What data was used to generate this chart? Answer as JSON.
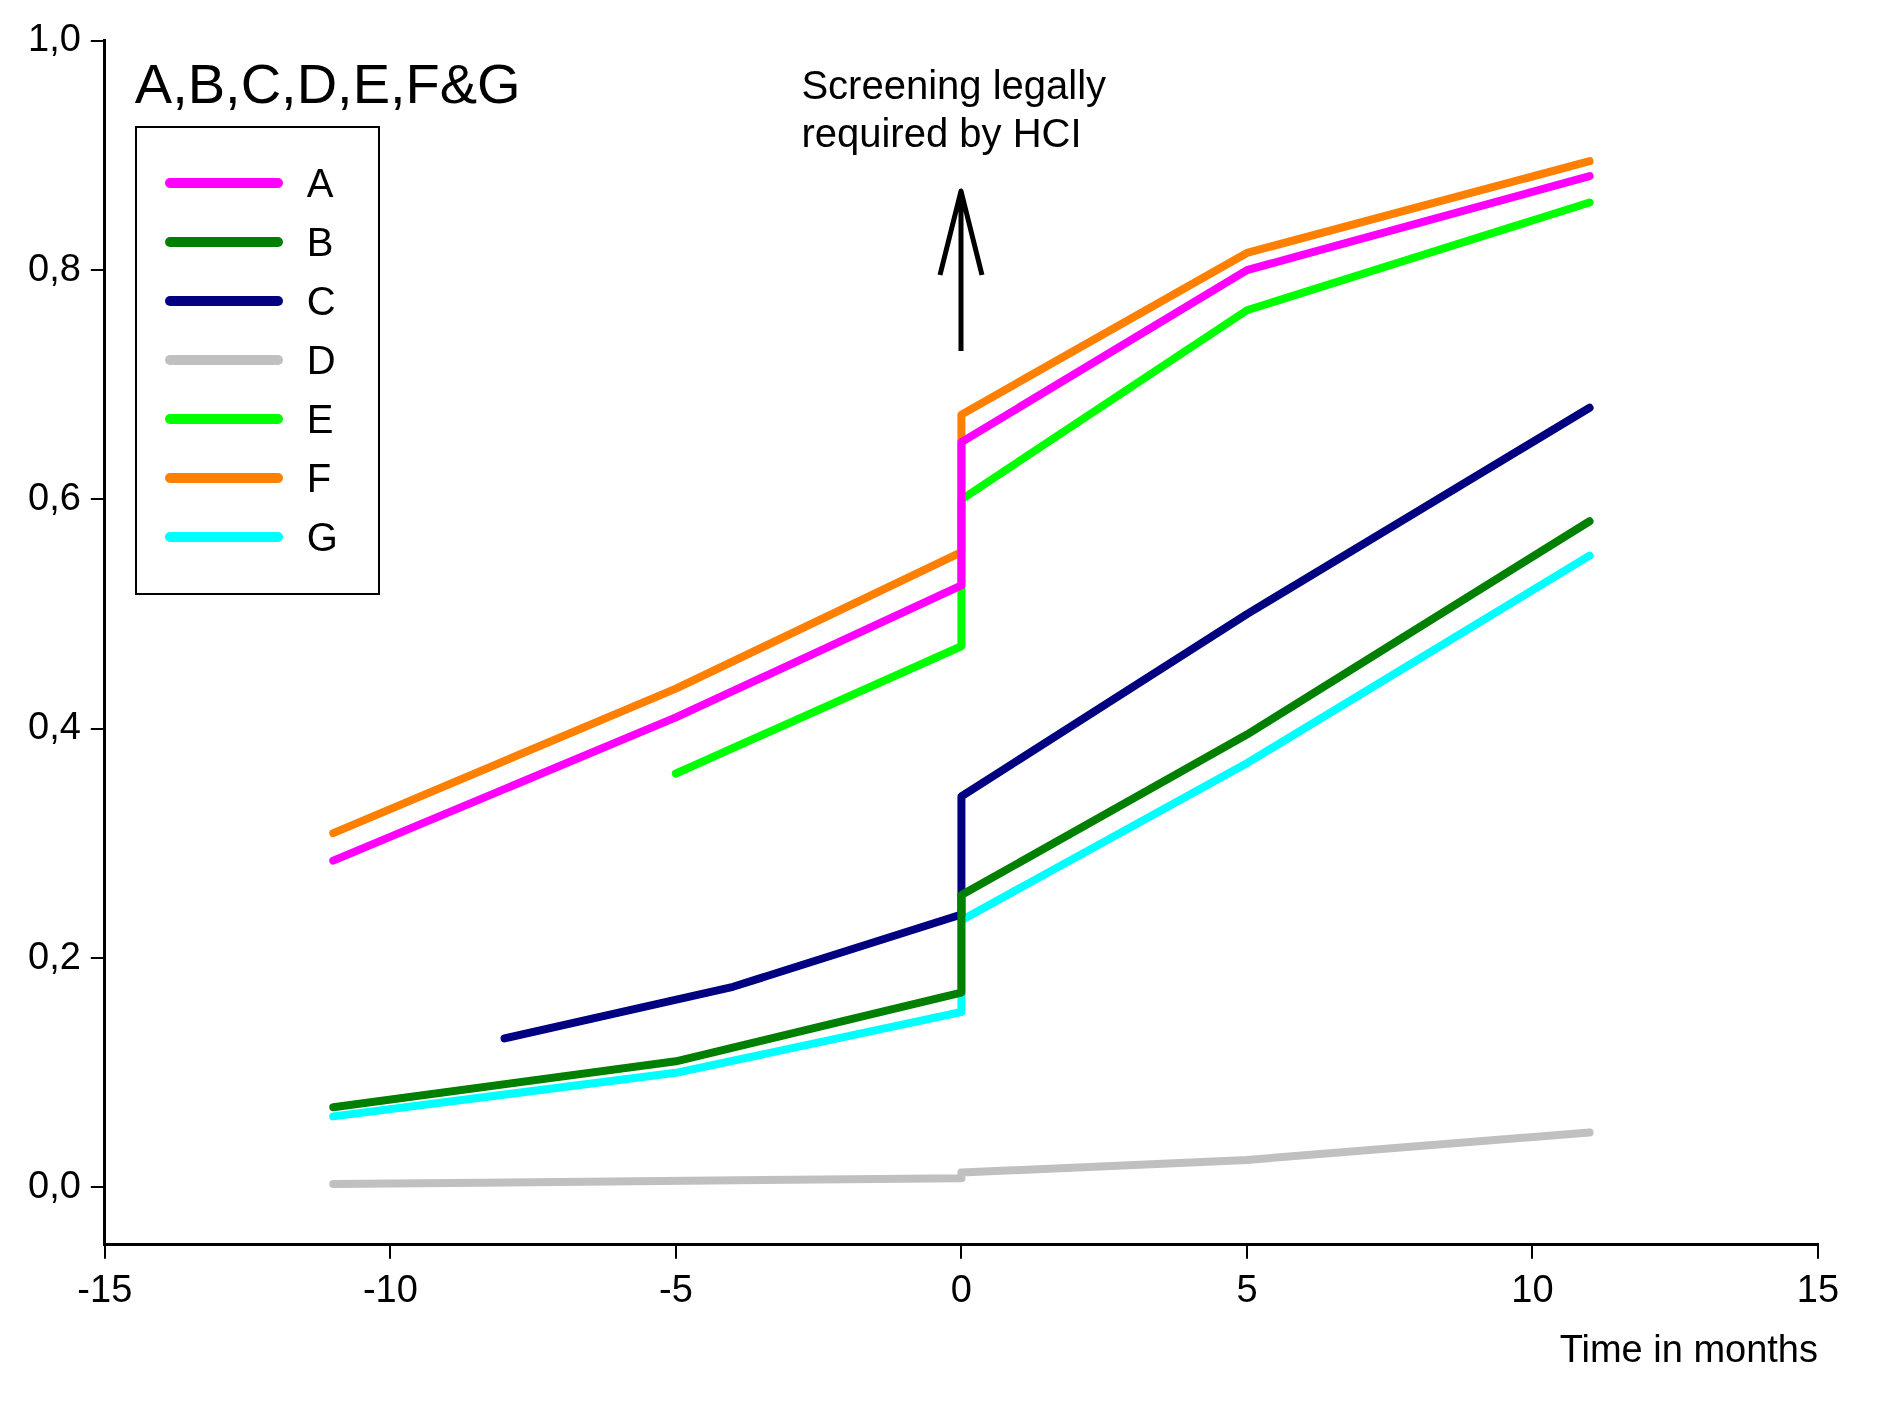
{
  "chart_data": {
    "type": "line",
    "xlabel": "Time in months",
    "legend_title": "A,B,C,D,E,F&G",
    "legend": "top left",
    "grid": false,
    "marker": "none",
    "line_style": "solid",
    "xlim": [
      -15,
      15
    ],
    "xticks": [
      -15,
      -10,
      -5,
      0,
      5,
      10,
      15
    ],
    "ylim": [
      -0.05,
      1.0
    ],
    "yticks": [
      {
        "value": 0,
        "label": "0,0"
      },
      {
        "value": 0.2,
        "label": "0,2"
      },
      {
        "value": 0.4,
        "label": "0,4"
      },
      {
        "value": 0.6,
        "label": "0,6"
      },
      {
        "value": 0.8,
        "label": "0,8"
      },
      {
        "value": 1,
        "label": "1,0"
      }
    ],
    "annotations": [
      "Screening legally required by HCI"
    ],
    "series": [
      {
        "name": "A",
        "color": "#ff00ff",
        "x": [
          -11,
          -5,
          0,
          0,
          5,
          11
        ],
        "values": [
          0.285,
          0.41,
          0.525,
          0.65,
          0.8,
          0.882
        ]
      },
      {
        "name": "B",
        "color": "#008000",
        "x": [
          -11,
          -5,
          0,
          0,
          5,
          11
        ],
        "values": [
          0.07,
          0.11,
          0.17,
          0.255,
          0.395,
          0.581
        ]
      },
      {
        "name": "C",
        "color": "#000080",
        "x": [
          -8,
          -4,
          0,
          0,
          5,
          11
        ],
        "values": [
          0.13,
          0.175,
          0.238,
          0.341,
          0.5,
          0.68
        ]
      },
      {
        "name": "D",
        "color": "#c0c0c0",
        "x": [
          -11,
          0,
          0,
          5,
          11
        ],
        "values": [
          0.003,
          0.008,
          0.013,
          0.024,
          0.048
        ]
      },
      {
        "name": "E",
        "color": "#00ff00",
        "x": [
          -5,
          0,
          0,
          5,
          11
        ],
        "values": [
          0.361,
          0.472,
          0.6,
          0.765,
          0.859
        ]
      },
      {
        "name": "F",
        "color": "#ff8000",
        "x": [
          -11,
          -5,
          0,
          0,
          5,
          11
        ],
        "values": [
          0.309,
          0.435,
          0.554,
          0.674,
          0.815,
          0.895
        ]
      },
      {
        "name": "G",
        "color": "#00ffff",
        "x": [
          -11,
          -5,
          0,
          0,
          5,
          11
        ],
        "values": [
          0.062,
          0.1,
          0.153,
          0.233,
          0.37,
          0.551
        ]
      }
    ]
  }
}
